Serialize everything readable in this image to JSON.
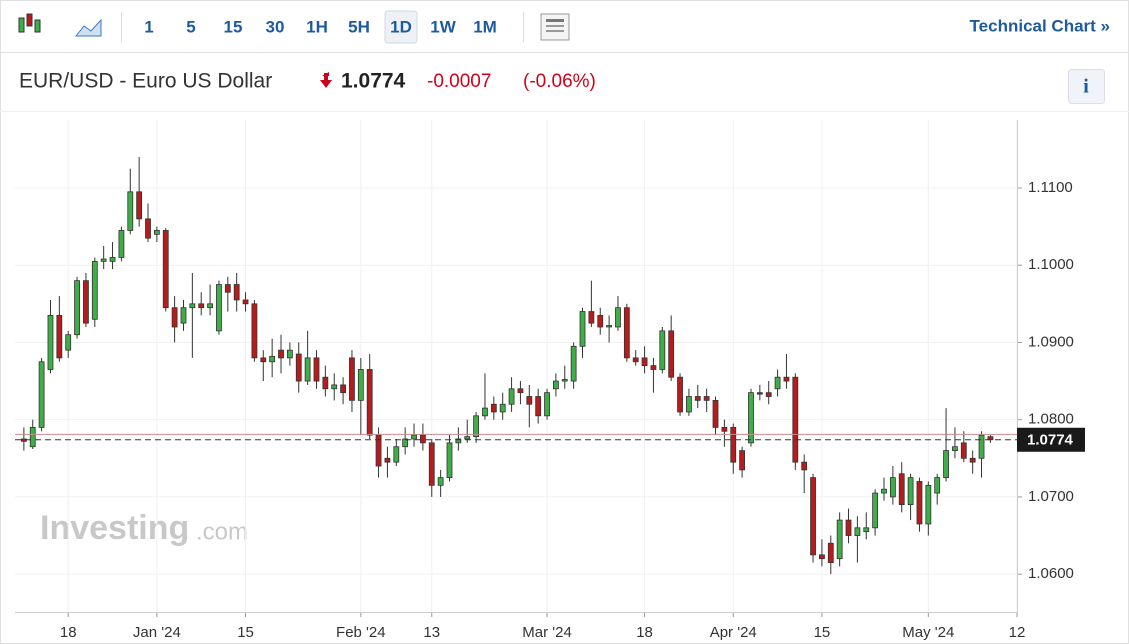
{
  "toolbar": {
    "intervals": [
      "1",
      "5",
      "15",
      "30",
      "1H",
      "5H",
      "1D",
      "1W",
      "1M"
    ],
    "selected": 6,
    "link": "Technical Chart »"
  },
  "header": {
    "name": "EUR/USD - Euro US Dollar",
    "change_percent": "(-0.06%)",
    "info": "i"
  },
  "watermark": {
    "brand": "Investing",
    "suffix": ".com"
  },
  "chart_data": {
    "type": "candlestick",
    "open": [
      1.0775,
      1.0765,
      1.079,
      1.0865,
      1.0935,
      1.089,
      1.091,
      1.098,
      1.093,
      1.1005,
      1.1005,
      1.101,
      1.1045,
      1.1095,
      1.106,
      1.104,
      1.1045,
      1.0945,
      1.0925,
      1.0945,
      1.095,
      1.0945,
      1.0915,
      1.0975,
      1.0975,
      1.0955,
      1.095,
      1.088,
      1.0875,
      1.089,
      1.088,
      1.0885,
      1.085,
      1.088,
      1.0855,
      1.084,
      1.0845,
      1.088,
      1.0825,
      1.0865,
      1.078,
      1.075,
      1.0745,
      1.0765,
      1.0775,
      1.078,
      1.077,
      1.0715,
      1.0725,
      1.077,
      1.0775,
      1.0778,
      1.0805,
      1.082,
      1.081,
      1.082,
      1.084,
      1.083,
      1.083,
      1.0805,
      1.084,
      1.085,
      1.085,
      1.0895,
      1.094,
      1.0935,
      1.092,
      1.092,
      1.0945,
      1.088,
      1.088,
      1.087,
      1.0865,
      1.0915,
      1.0855,
      1.081,
      1.083,
      1.083,
      1.0825,
      1.079,
      1.079,
      1.076,
      1.077,
      1.0835,
      1.0835,
      1.084,
      1.0855,
      1.0855,
      1.0745,
      1.0725,
      1.0625,
      1.064,
      1.062,
      1.067,
      1.065,
      1.0655,
      1.066,
      1.0705,
      1.07,
      1.073,
      1.069,
      1.072,
      1.0665,
      1.0705,
      1.0725,
      1.076,
      1.077,
      1.075,
      1.075,
      1.0778
    ],
    "high": [
      1.079,
      1.08,
      1.088,
      1.0955,
      1.096,
      1.0915,
      1.0985,
      1.099,
      1.101,
      1.1025,
      1.103,
      1.105,
      1.1125,
      1.114,
      1.108,
      1.105,
      1.1048,
      1.096,
      1.0955,
      1.099,
      1.0965,
      1.0975,
      1.098,
      1.0985,
      1.099,
      1.0965,
      1.0955,
      1.089,
      1.0905,
      1.091,
      1.09,
      1.09,
      1.0915,
      1.089,
      1.087,
      1.086,
      1.0855,
      1.089,
      1.088,
      1.0885,
      1.079,
      1.0765,
      1.0775,
      1.079,
      1.0795,
      1.0795,
      1.0775,
      1.0735,
      1.078,
      1.079,
      1.08,
      1.081,
      1.086,
      1.083,
      1.0835,
      1.0855,
      1.085,
      1.0845,
      1.084,
      1.084,
      1.086,
      1.087,
      1.09,
      1.0945,
      1.098,
      1.0945,
      1.0935,
      1.096,
      1.095,
      1.089,
      1.0895,
      1.088,
      1.092,
      1.0935,
      1.086,
      1.084,
      1.0845,
      1.084,
      1.083,
      1.08,
      1.0795,
      1.0765,
      1.084,
      1.0845,
      1.085,
      1.0865,
      1.0885,
      1.086,
      1.0755,
      1.073,
      1.0645,
      1.065,
      1.068,
      1.0685,
      1.0675,
      1.068,
      1.071,
      1.0725,
      1.074,
      1.0745,
      1.073,
      1.0725,
      1.072,
      1.073,
      1.0815,
      1.079,
      1.0785,
      1.076,
      1.0785,
      1.078
    ],
    "low": [
      1.076,
      1.0762,
      1.0785,
      1.086,
      1.0875,
      1.088,
      1.0905,
      1.092,
      1.092,
      1.0995,
      1.0995,
      1.1005,
      1.104,
      1.105,
      1.103,
      1.103,
      1.094,
      1.09,
      1.0915,
      1.088,
      1.0935,
      1.0935,
      1.091,
      1.094,
      1.094,
      1.094,
      1.0875,
      1.085,
      1.0855,
      1.086,
      1.087,
      1.0835,
      1.0845,
      1.084,
      1.083,
      1.0825,
      1.082,
      1.081,
      1.078,
      1.0775,
      1.0725,
      1.0725,
      1.074,
      1.0755,
      1.0765,
      1.076,
      1.07,
      1.07,
      1.072,
      1.076,
      1.077,
      1.077,
      1.08,
      1.08,
      1.08,
      1.081,
      1.082,
      1.079,
      1.0795,
      1.08,
      1.083,
      1.084,
      1.084,
      1.088,
      1.092,
      1.091,
      1.09,
      1.0915,
      1.0875,
      1.087,
      1.086,
      1.0835,
      1.086,
      1.085,
      1.0805,
      1.0805,
      1.0815,
      1.081,
      1.078,
      1.0765,
      1.073,
      1.0725,
      1.0765,
      1.0825,
      1.082,
      1.083,
      1.084,
      1.0735,
      1.0705,
      1.0615,
      1.061,
      1.06,
      1.061,
      1.064,
      1.0615,
      1.0645,
      1.065,
      1.0695,
      1.069,
      1.068,
      1.067,
      1.0655,
      1.065,
      1.069,
      1.072,
      1.075,
      1.0745,
      1.073,
      1.0725,
      1.077
    ],
    "close": [
      1.0772,
      1.079,
      1.0875,
      1.0935,
      1.088,
      1.091,
      1.098,
      1.0925,
      1.1005,
      1.1008,
      1.101,
      1.1045,
      1.1095,
      1.106,
      1.1035,
      1.1045,
      1.0945,
      1.092,
      1.0945,
      1.095,
      1.0945,
      1.095,
      1.0975,
      1.0965,
      1.0955,
      1.095,
      1.088,
      1.0875,
      1.0882,
      1.088,
      1.089,
      1.085,
      1.088,
      1.085,
      1.084,
      1.0845,
      1.0835,
      1.0825,
      1.0865,
      1.078,
      1.074,
      1.0745,
      1.0765,
      1.0775,
      1.078,
      1.077,
      1.0715,
      1.0725,
      1.077,
      1.0775,
      1.0778,
      1.0805,
      1.0815,
      1.081,
      1.082,
      1.084,
      1.0835,
      1.082,
      1.0805,
      1.0835,
      1.085,
      1.0852,
      1.0895,
      1.094,
      1.0925,
      1.092,
      1.0922,
      1.0945,
      1.088,
      1.0875,
      1.087,
      1.0865,
      1.0915,
      1.0855,
      1.081,
      1.083,
      1.0825,
      1.0825,
      1.079,
      1.0785,
      1.0745,
      1.0735,
      1.0835,
      1.0833,
      1.083,
      1.0855,
      1.085,
      1.0745,
      1.0735,
      1.0625,
      1.062,
      1.0615,
      1.067,
      1.065,
      1.066,
      1.066,
      1.0705,
      1.071,
      1.0725,
      1.069,
      1.0725,
      1.0665,
      1.0715,
      1.0725,
      1.076,
      1.0765,
      1.075,
      1.0745,
      1.078,
      1.0774
    ],
    "up_color": "#3fae49",
    "down_color": "#b71c1c",
    "last_price": 1.0774,
    "change": -0.0007,
    "previous_close": 1.0781,
    "xlim": [
      -1,
      112
    ],
    "xticks": [
      {
        "value": 5,
        "label": "18"
      },
      {
        "value": 15,
        "label": "Jan '24"
      },
      {
        "value": 25,
        "label": "15"
      },
      {
        "value": 38,
        "label": "Feb '24"
      },
      {
        "value": 46,
        "label": "13"
      },
      {
        "value": 59,
        "label": "Mar '24"
      },
      {
        "value": 70,
        "label": "18"
      },
      {
        "value": 80,
        "label": "Apr '24"
      },
      {
        "value": 90,
        "label": "15"
      },
      {
        "value": 102,
        "label": "May '24"
      },
      {
        "value": 112,
        "label": "12"
      }
    ],
    "ylim": [
      1.0551,
      1.1188
    ],
    "yticks": [
      {
        "value": 1.06,
        "label": "1.0600"
      },
      {
        "value": 1.07,
        "label": "1.0700"
      },
      {
        "value": 1.08,
        "label": "1.0800"
      },
      {
        "value": 1.09,
        "label": "1.0900"
      },
      {
        "value": 1.1,
        "label": "1.1000"
      },
      {
        "value": 1.11,
        "label": "1.1100"
      }
    ],
    "grid": true
  }
}
